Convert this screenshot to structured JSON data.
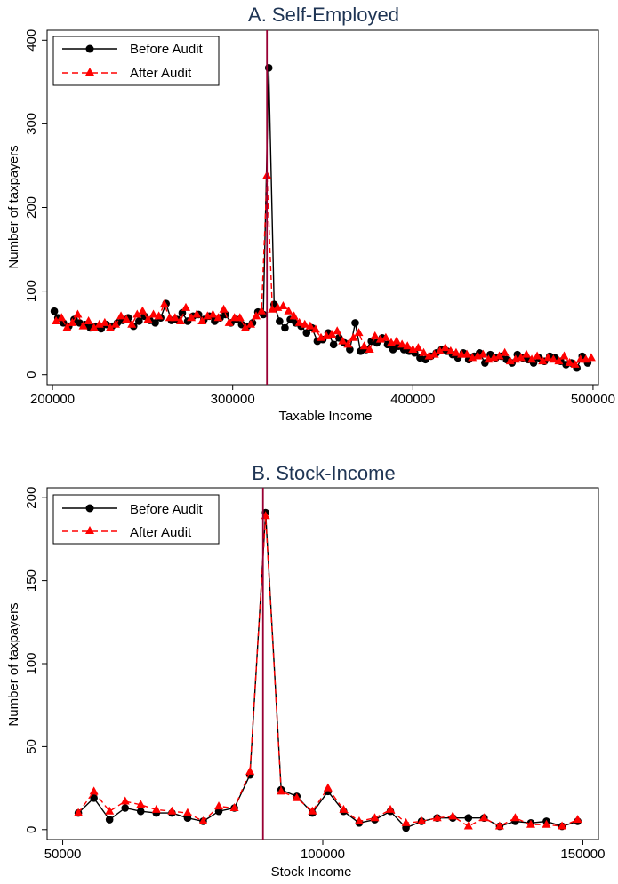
{
  "colors": {
    "before": "#000000",
    "after": "#ff0000",
    "vline": "#990033",
    "title": "#1f3554"
  },
  "chart_data": [
    {
      "type": "line",
      "title": "A. Self-Employed",
      "xlabel": "Taxable Income",
      "ylabel": "Number of taxpayers",
      "xlim": [
        197000,
        503000
      ],
      "ylim": [
        -12,
        412
      ],
      "xticks": [
        "200000",
        "300000",
        "400000",
        "500000"
      ],
      "xtick_values": [
        200000,
        300000,
        400000,
        500000
      ],
      "yticks": [
        "0",
        "100",
        "200",
        "300",
        "400"
      ],
      "ytick_values": [
        0,
        100,
        200,
        300,
        400
      ],
      "vline": 319000,
      "legend": {
        "position": "top-left",
        "entries": [
          "Before Audit",
          "After Audit"
        ]
      },
      "series": [
        {
          "name": "Before Audit",
          "marker": "circle",
          "line": "solid",
          "x": [
            201000,
            203000,
            206000,
            209000,
            212000,
            215000,
            218000,
            221000,
            224000,
            227000,
            230000,
            233000,
            236000,
            239000,
            242000,
            245000,
            248000,
            251000,
            254000,
            257000,
            260000,
            263000,
            266000,
            269000,
            272000,
            275000,
            278000,
            281000,
            284000,
            287000,
            290000,
            293000,
            296000,
            299000,
            302000,
            305000,
            308000,
            311000,
            314000,
            317000,
            320000,
            323000,
            326000,
            329000,
            332000,
            335000,
            338000,
            341000,
            344000,
            347000,
            350000,
            353000,
            356000,
            359000,
            362000,
            365000,
            368000,
            371000,
            374000,
            377000,
            380000,
            383000,
            386000,
            389000,
            392000,
            395000,
            398000,
            401000,
            404000,
            407000,
            410000,
            413000,
            416000,
            419000,
            422000,
            425000,
            428000,
            431000,
            434000,
            437000,
            440000,
            443000,
            446000,
            449000,
            452000,
            455000,
            458000,
            461000,
            464000,
            467000,
            470000,
            473000,
            476000,
            479000,
            482000,
            485000,
            488000,
            491000,
            494000,
            497000
          ],
          "y": [
            76,
            68,
            62,
            58,
            66,
            62,
            60,
            56,
            58,
            55,
            60,
            58,
            62,
            65,
            68,
            58,
            64,
            70,
            65,
            62,
            68,
            85,
            65,
            66,
            74,
            64,
            70,
            72,
            66,
            70,
            64,
            68,
            72,
            62,
            66,
            60,
            58,
            62,
            75,
            72,
            367,
            84,
            64,
            56,
            66,
            62,
            58,
            50,
            56,
            40,
            42,
            50,
            36,
            44,
            38,
            30,
            62,
            28,
            30,
            40,
            38,
            44,
            36,
            30,
            34,
            30,
            28,
            26,
            20,
            18,
            22,
            26,
            30,
            28,
            24,
            20,
            26,
            18,
            22,
            26,
            14,
            24,
            20,
            22,
            18,
            14,
            24,
            20,
            18,
            14,
            20,
            16,
            22,
            20,
            16,
            12,
            14,
            8,
            22,
            14
          ]
        },
        {
          "name": "After Audit",
          "marker": "triangle",
          "line": "dashed",
          "x": [
            202000,
            205000,
            208000,
            211000,
            214000,
            217000,
            220000,
            223000,
            226000,
            229000,
            232000,
            235000,
            238000,
            241000,
            244000,
            247000,
            250000,
            253000,
            256000,
            259000,
            262000,
            265000,
            268000,
            271000,
            274000,
            277000,
            280000,
            283000,
            286000,
            289000,
            292000,
            295000,
            298000,
            301000,
            304000,
            307000,
            310000,
            313000,
            316000,
            319000,
            322000,
            325000,
            328000,
            331000,
            334000,
            337000,
            340000,
            343000,
            346000,
            349000,
            352000,
            355000,
            358000,
            361000,
            364000,
            367000,
            370000,
            373000,
            376000,
            379000,
            382000,
            385000,
            388000,
            391000,
            394000,
            397000,
            400000,
            403000,
            406000,
            409000,
            412000,
            415000,
            418000,
            421000,
            424000,
            427000,
            430000,
            433000,
            436000,
            439000,
            442000,
            445000,
            448000,
            451000,
            454000,
            457000,
            460000,
            463000,
            466000,
            469000,
            472000,
            475000,
            478000,
            481000,
            484000,
            487000,
            490000,
            493000,
            496000,
            499000
          ],
          "y": [
            64,
            68,
            56,
            62,
            72,
            58,
            64,
            56,
            60,
            62,
            56,
            60,
            70,
            66,
            60,
            72,
            76,
            66,
            72,
            70,
            84,
            68,
            68,
            64,
            80,
            68,
            72,
            64,
            70,
            72,
            68,
            78,
            62,
            68,
            68,
            56,
            60,
            70,
            76,
            238,
            78,
            80,
            82,
            76,
            70,
            62,
            60,
            58,
            54,
            44,
            46,
            48,
            52,
            40,
            36,
            44,
            50,
            34,
            30,
            46,
            42,
            44,
            38,
            40,
            36,
            34,
            30,
            32,
            26,
            22,
            24,
            28,
            32,
            28,
            26,
            24,
            24,
            20,
            22,
            24,
            18,
            20,
            22,
            26,
            16,
            18,
            20,
            24,
            18,
            22,
            16,
            20,
            18,
            16,
            22,
            14,
            12,
            18,
            18,
            20
          ]
        }
      ]
    },
    {
      "type": "line",
      "title": "B. Stock-Income",
      "xlabel": "Stock Income",
      "ylabel": "Number of taxpayers",
      "xlim": [
        47000,
        153000
      ],
      "ylim": [
        -6,
        206
      ],
      "xticks": [
        "50000",
        "100000",
        "150000"
      ],
      "xtick_values": [
        50000,
        100000,
        150000
      ],
      "yticks": [
        "0",
        "50",
        "100",
        "150",
        "200"
      ],
      "ytick_values": [
        0,
        50,
        100,
        150,
        200
      ],
      "vline": 88500,
      "legend": {
        "position": "top-left",
        "entries": [
          "Before Audit",
          "After Audit"
        ]
      },
      "series": [
        {
          "name": "Before Audit",
          "marker": "circle",
          "line": "solid",
          "x": [
            53000,
            56000,
            59000,
            62000,
            65000,
            68000,
            71000,
            74000,
            77000,
            80000,
            83000,
            86000,
            89000,
            92000,
            95000,
            98000,
            101000,
            104000,
            107000,
            110000,
            113000,
            116000,
            119000,
            122000,
            125000,
            128000,
            131000,
            134000,
            137000,
            140000,
            143000,
            146000,
            149000
          ],
          "y": [
            10,
            19,
            6,
            13,
            11,
            10,
            10,
            7,
            5,
            11,
            13,
            33,
            191,
            24,
            20,
            10,
            23,
            11,
            4,
            6,
            11,
            1,
            5,
            7,
            7,
            7,
            7,
            2,
            5,
            4,
            5,
            2,
            5
          ],
          "ignored": true
        },
        {
          "name": "After Audit",
          "marker": "triangle",
          "line": "dashed",
          "x": [
            53000,
            56000,
            59000,
            62000,
            65000,
            68000,
            71000,
            74000,
            77000,
            80000,
            83000,
            86000,
            89000,
            92000,
            95000,
            98000,
            101000,
            104000,
            107000,
            110000,
            113000,
            116000,
            119000,
            122000,
            125000,
            128000,
            131000,
            134000,
            137000,
            140000,
            143000,
            146000,
            149000
          ],
          "y": [
            10,
            23,
            11,
            17,
            15,
            12,
            11,
            10,
            5,
            14,
            13,
            35,
            189,
            23,
            19,
            11,
            25,
            12,
            5,
            7,
            12,
            4,
            5,
            7,
            8,
            2,
            7,
            2,
            7,
            3,
            3,
            2,
            6
          ]
        }
      ]
    }
  ]
}
